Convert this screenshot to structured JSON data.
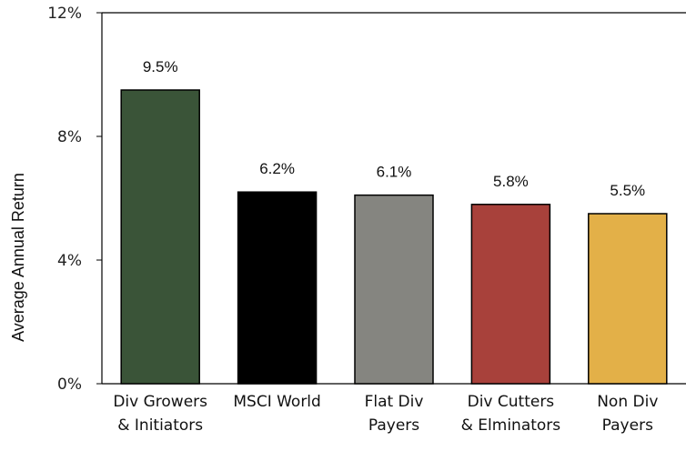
{
  "chart_data": {
    "type": "bar",
    "title": "",
    "xlabel": "",
    "ylabel": "Average Annual Return",
    "ylim": [
      0,
      12
    ],
    "yticks": [
      "0%",
      "4%",
      "8%",
      "12%"
    ],
    "categories": [
      [
        "Div Growers",
        "& Initiators"
      ],
      [
        "MSCI World"
      ],
      [
        "Flat Div",
        "Payers"
      ],
      [
        "Div Cutters",
        "& Elminators"
      ],
      [
        "Non Div",
        "Payers"
      ]
    ],
    "values": [
      9.5,
      6.2,
      6.1,
      5.8,
      5.5
    ],
    "data_labels": [
      "9.5%",
      "6.2%",
      "6.1%",
      "5.8%",
      "5.5%"
    ],
    "colors": [
      "#3a5438",
      "#000000",
      "#858580",
      "#a8413b",
      "#e3b048"
    ],
    "grid": false,
    "legend": "none"
  }
}
